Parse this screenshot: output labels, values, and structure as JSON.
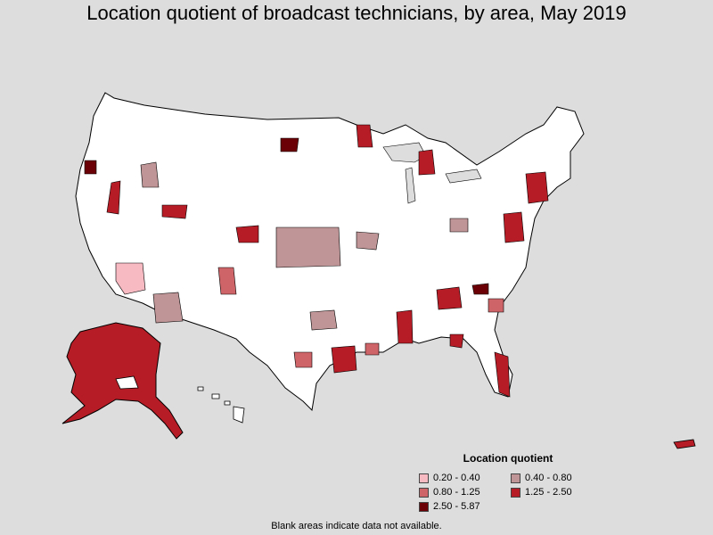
{
  "title": "Location quotient of broadcast technicians, by area, May 2019",
  "legend": {
    "title": "Location quotient",
    "items": [
      {
        "label": "0.20 - 0.40",
        "color": "#f7b9c2"
      },
      {
        "label": "0.40 - 0.80",
        "color": "#c09597"
      },
      {
        "label": "0.80 - 1.25",
        "color": "#cf6468"
      },
      {
        "label": "1.25 - 2.50",
        "color": "#b51c25"
      },
      {
        "label": "2.50 - 5.87",
        "color": "#6b0006"
      }
    ]
  },
  "footnote": "Blank areas indicate data not available.",
  "colors": {
    "background": "#dddddd",
    "land": "#ffffff",
    "border": "#000000"
  }
}
